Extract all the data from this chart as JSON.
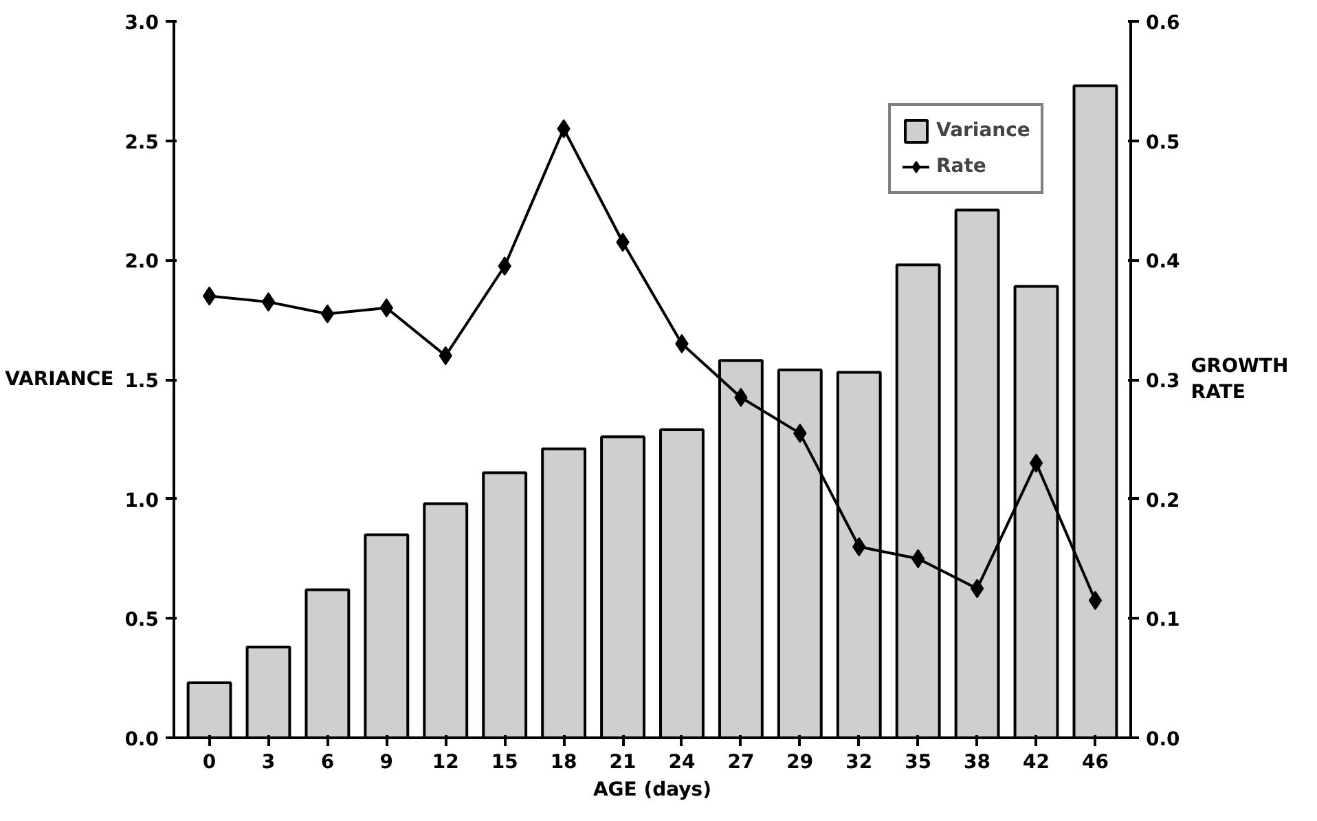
{
  "chart_data": {
    "type": "bar",
    "xlabel": "AGE (days)",
    "ylabel": "VARIANCE",
    "y2label": "GROWTH\nRATE",
    "categories": [
      "0",
      "3",
      "6",
      "9",
      "12",
      "15",
      "18",
      "21",
      "24",
      "27",
      "29",
      "32",
      "35",
      "38",
      "42",
      "46"
    ],
    "series": [
      {
        "name": "Variance",
        "color": "#cfcfcf",
        "values": [
          0.23,
          0.38,
          0.62,
          0.85,
          0.98,
          1.11,
          1.21,
          1.26,
          1.29,
          1.58,
          1.54,
          1.53,
          1.98,
          2.21,
          1.89,
          2.73
        ]
      },
      {
        "name": "Rate",
        "type": "line",
        "axis": "y2",
        "color": "#000000",
        "marker": "diamond",
        "line_style": "solid",
        "values": [
          0.37,
          0.365,
          0.355,
          0.36,
          0.32,
          0.395,
          0.51,
          0.415,
          0.33,
          0.285,
          0.255,
          0.16,
          0.15,
          0.125,
          0.23,
          0.115
        ]
      }
    ],
    "ylim": [
      0,
      3.0
    ],
    "yticks": [
      {
        "value": 0,
        "label": "0.0"
      },
      {
        "value": 0.5,
        "label": "0.5"
      },
      {
        "value": 1,
        "label": "1.0"
      },
      {
        "value": 1.5,
        "label": "1.5"
      },
      {
        "value": 2,
        "label": "2.0"
      },
      {
        "value": 2.5,
        "label": "2.5"
      },
      {
        "value": 3,
        "label": "3.0"
      }
    ],
    "y2lim": [
      0,
      0.6
    ],
    "y2ticks": [
      {
        "value": 0,
        "label": "0.0"
      },
      0.1,
      0.2,
      0.3,
      0.4,
      0.5,
      0.6
    ],
    "legend": "top right",
    "grid": false
  }
}
